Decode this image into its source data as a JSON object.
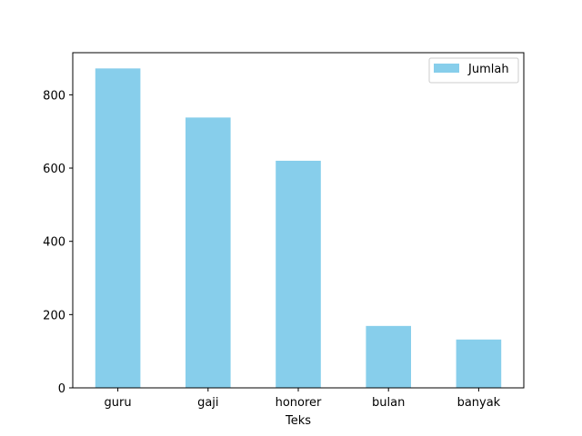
{
  "chart_data": {
    "type": "bar",
    "title": "",
    "xlabel": "Teks",
    "ylabel": "",
    "categories": [
      "guru",
      "gaji",
      "honorer",
      "bulan",
      "banyak"
    ],
    "series": [
      {
        "name": "Jumlah",
        "values": [
          872,
          738,
          620,
          169,
          132
        ],
        "color": "#87CEEB"
      }
    ],
    "ylim": [
      0,
      915
    ],
    "yticks": [
      0,
      200,
      400,
      600,
      800
    ],
    "grid": false,
    "legend_position": "top-right"
  }
}
